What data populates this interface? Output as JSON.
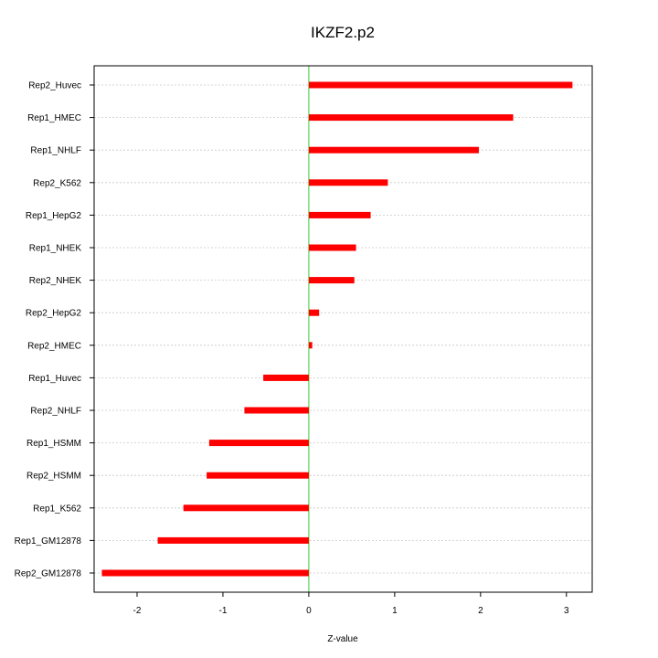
{
  "chart_data": {
    "type": "bar",
    "orientation": "horizontal",
    "title": "IKZF2.p2",
    "xlabel": "Z-value",
    "ylabel": "",
    "xlim": [
      -2.5,
      3.3
    ],
    "xticks": [
      -2,
      -1,
      0,
      1,
      2,
      3
    ],
    "xtick_labels": [
      "-2",
      "-1",
      "0",
      "1",
      "2",
      "3"
    ],
    "categories": [
      "Rep2_Huvec",
      "Rep1_HMEC",
      "Rep1_NHLF",
      "Rep2_K562",
      "Rep1_HepG2",
      "Rep1_NHEK",
      "Rep2_NHEK",
      "Rep2_HepG2",
      "Rep2_HMEC",
      "Rep1_Huvec",
      "Rep2_NHLF",
      "Rep1_HSMM",
      "Rep2_HSMM",
      "Rep1_K562",
      "Rep1_GM12878",
      "Rep2_GM12878"
    ],
    "values": [
      3.07,
      2.38,
      1.98,
      0.92,
      0.72,
      0.55,
      0.53,
      0.12,
      0.04,
      -0.53,
      -0.75,
      -1.16,
      -1.19,
      -1.46,
      -1.76,
      -2.41
    ],
    "bar_color": "#ff0000",
    "zero_line_color": "#33cc33",
    "grid": true
  }
}
